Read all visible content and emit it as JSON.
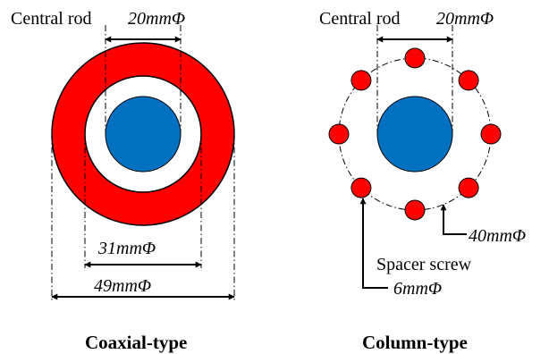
{
  "colors": {
    "outer_ring": "#ff0000",
    "central_rod": "#0070c0",
    "gap": "#ffffff",
    "spacer": "#ff0000",
    "stroke": "#000000"
  },
  "coaxial": {
    "rod_label": "Central rod",
    "rod_dim": "20mmΦ",
    "inner_dim": "31mmΦ",
    "outer_dim": "49mmΦ",
    "caption": "Coaxial-type"
  },
  "column": {
    "rod_label": "Central rod",
    "rod_dim": "20mmΦ",
    "circle_dim": "40mmΦ",
    "spacer_label": "Spacer screw",
    "spacer_dim": "6mmΦ",
    "caption": "Column-type",
    "spacer_count": 8
  }
}
